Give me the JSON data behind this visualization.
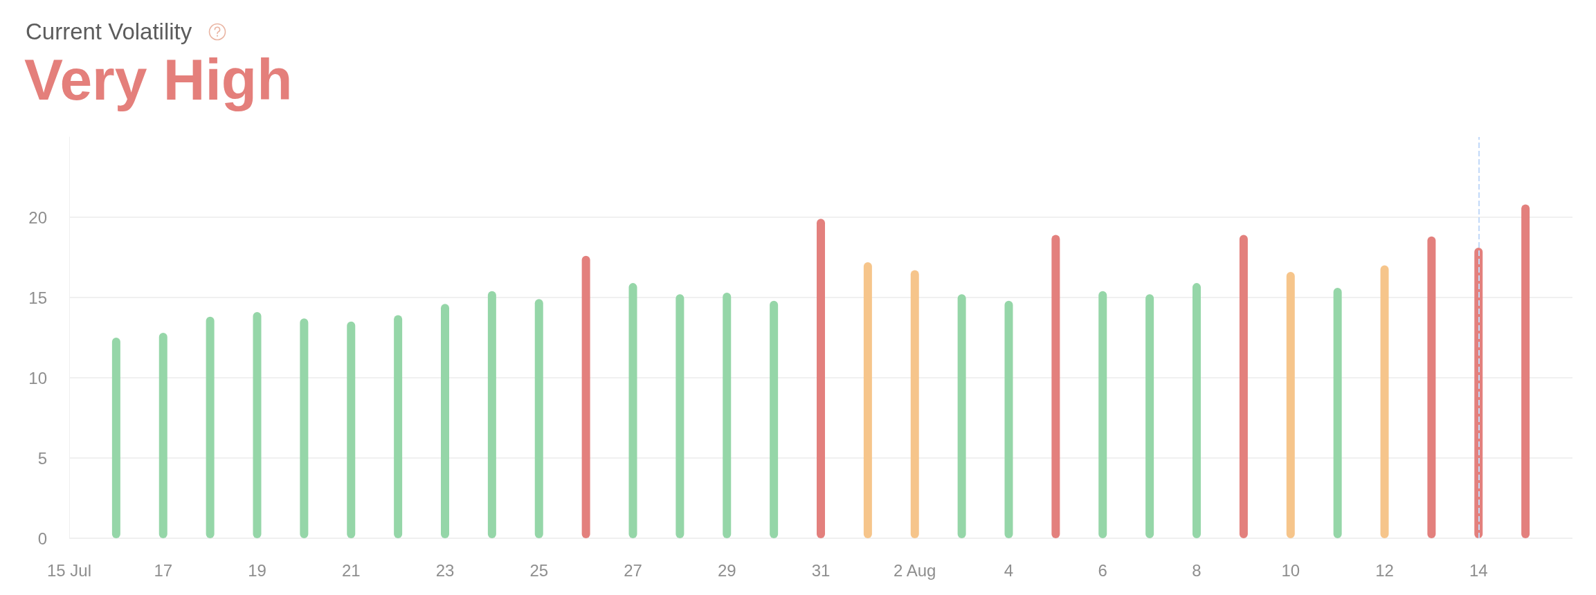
{
  "chart_data": {
    "type": "bar",
    "title": "Current Volatility",
    "subtitle": "Very High",
    "x": [
      "--07-16",
      "--07-17",
      "--07-18",
      "--07-19",
      "--07-20",
      "--07-21",
      "--07-22",
      "--07-23",
      "--07-24",
      "--07-25",
      "--07-26",
      "--07-27",
      "--07-28",
      "--07-29",
      "--07-30",
      "--07-31",
      "--08-01",
      "--08-02",
      "--08-03",
      "--08-04",
      "--08-05",
      "--08-06",
      "--08-07",
      "--08-08",
      "--08-09",
      "--08-10",
      "--08-11",
      "--08-12",
      "--08-13",
      "--08-14",
      "--08-15"
    ],
    "values": [
      12.5,
      12.8,
      13.8,
      14.1,
      13.7,
      13.5,
      13.9,
      14.6,
      15.4,
      14.9,
      17.6,
      15.9,
      15.2,
      15.3,
      14.8,
      19.9,
      17.2,
      16.7,
      15.2,
      14.8,
      18.9,
      15.4,
      15.2,
      15.9,
      18.9,
      16.6,
      15.6,
      17.0,
      18.8,
      18.1,
      20.8
    ],
    "colors": [
      "#95d6a8",
      "#95d6a8",
      "#95d6a8",
      "#95d6a8",
      "#95d6a8",
      "#95d6a8",
      "#95d6a8",
      "#95d6a8",
      "#95d6a8",
      "#95d6a8",
      "#e3807d",
      "#95d6a8",
      "#95d6a8",
      "#95d6a8",
      "#95d6a8",
      "#e3807d",
      "#f6c58b",
      "#f6c58b",
      "#95d6a8",
      "#95d6a8",
      "#e3807d",
      "#95d6a8",
      "#95d6a8",
      "#95d6a8",
      "#e3807d",
      "#f6c58b",
      "#95d6a8",
      "#f6c58b",
      "#e3807d",
      "#e3807d",
      "#e3807d"
    ],
    "xlim": [
      "--07-15",
      "--08-16"
    ],
    "xticks": [
      {
        "value": "--07-15",
        "label": "15 Jul"
      },
      {
        "value": "--07-17",
        "label": "17"
      },
      {
        "value": "--07-19",
        "label": "19"
      },
      {
        "value": "--07-21",
        "label": "21"
      },
      {
        "value": "--07-23",
        "label": "23"
      },
      {
        "value": "--07-25",
        "label": "25"
      },
      {
        "value": "--07-27",
        "label": "27"
      },
      {
        "value": "--07-29",
        "label": "29"
      },
      {
        "value": "--07-31",
        "label": "31"
      },
      {
        "value": "--08-02",
        "label": "2 Aug"
      },
      {
        "value": "--08-04",
        "label": "4"
      },
      {
        "value": "--08-06",
        "label": "6"
      },
      {
        "value": "--08-08",
        "label": "8"
      },
      {
        "value": "--08-10",
        "label": "10"
      },
      {
        "value": "--08-12",
        "label": "12"
      },
      {
        "value": "--08-14",
        "label": "14"
      }
    ],
    "ylim": [
      0,
      25
    ],
    "yticks": [
      0,
      5,
      10,
      15,
      20
    ],
    "grid": "y",
    "ref_lines": [
      {
        "axis": "x",
        "value": "--08-14",
        "color": "#c2d9f8",
        "line_style": "dashed"
      }
    ]
  }
}
